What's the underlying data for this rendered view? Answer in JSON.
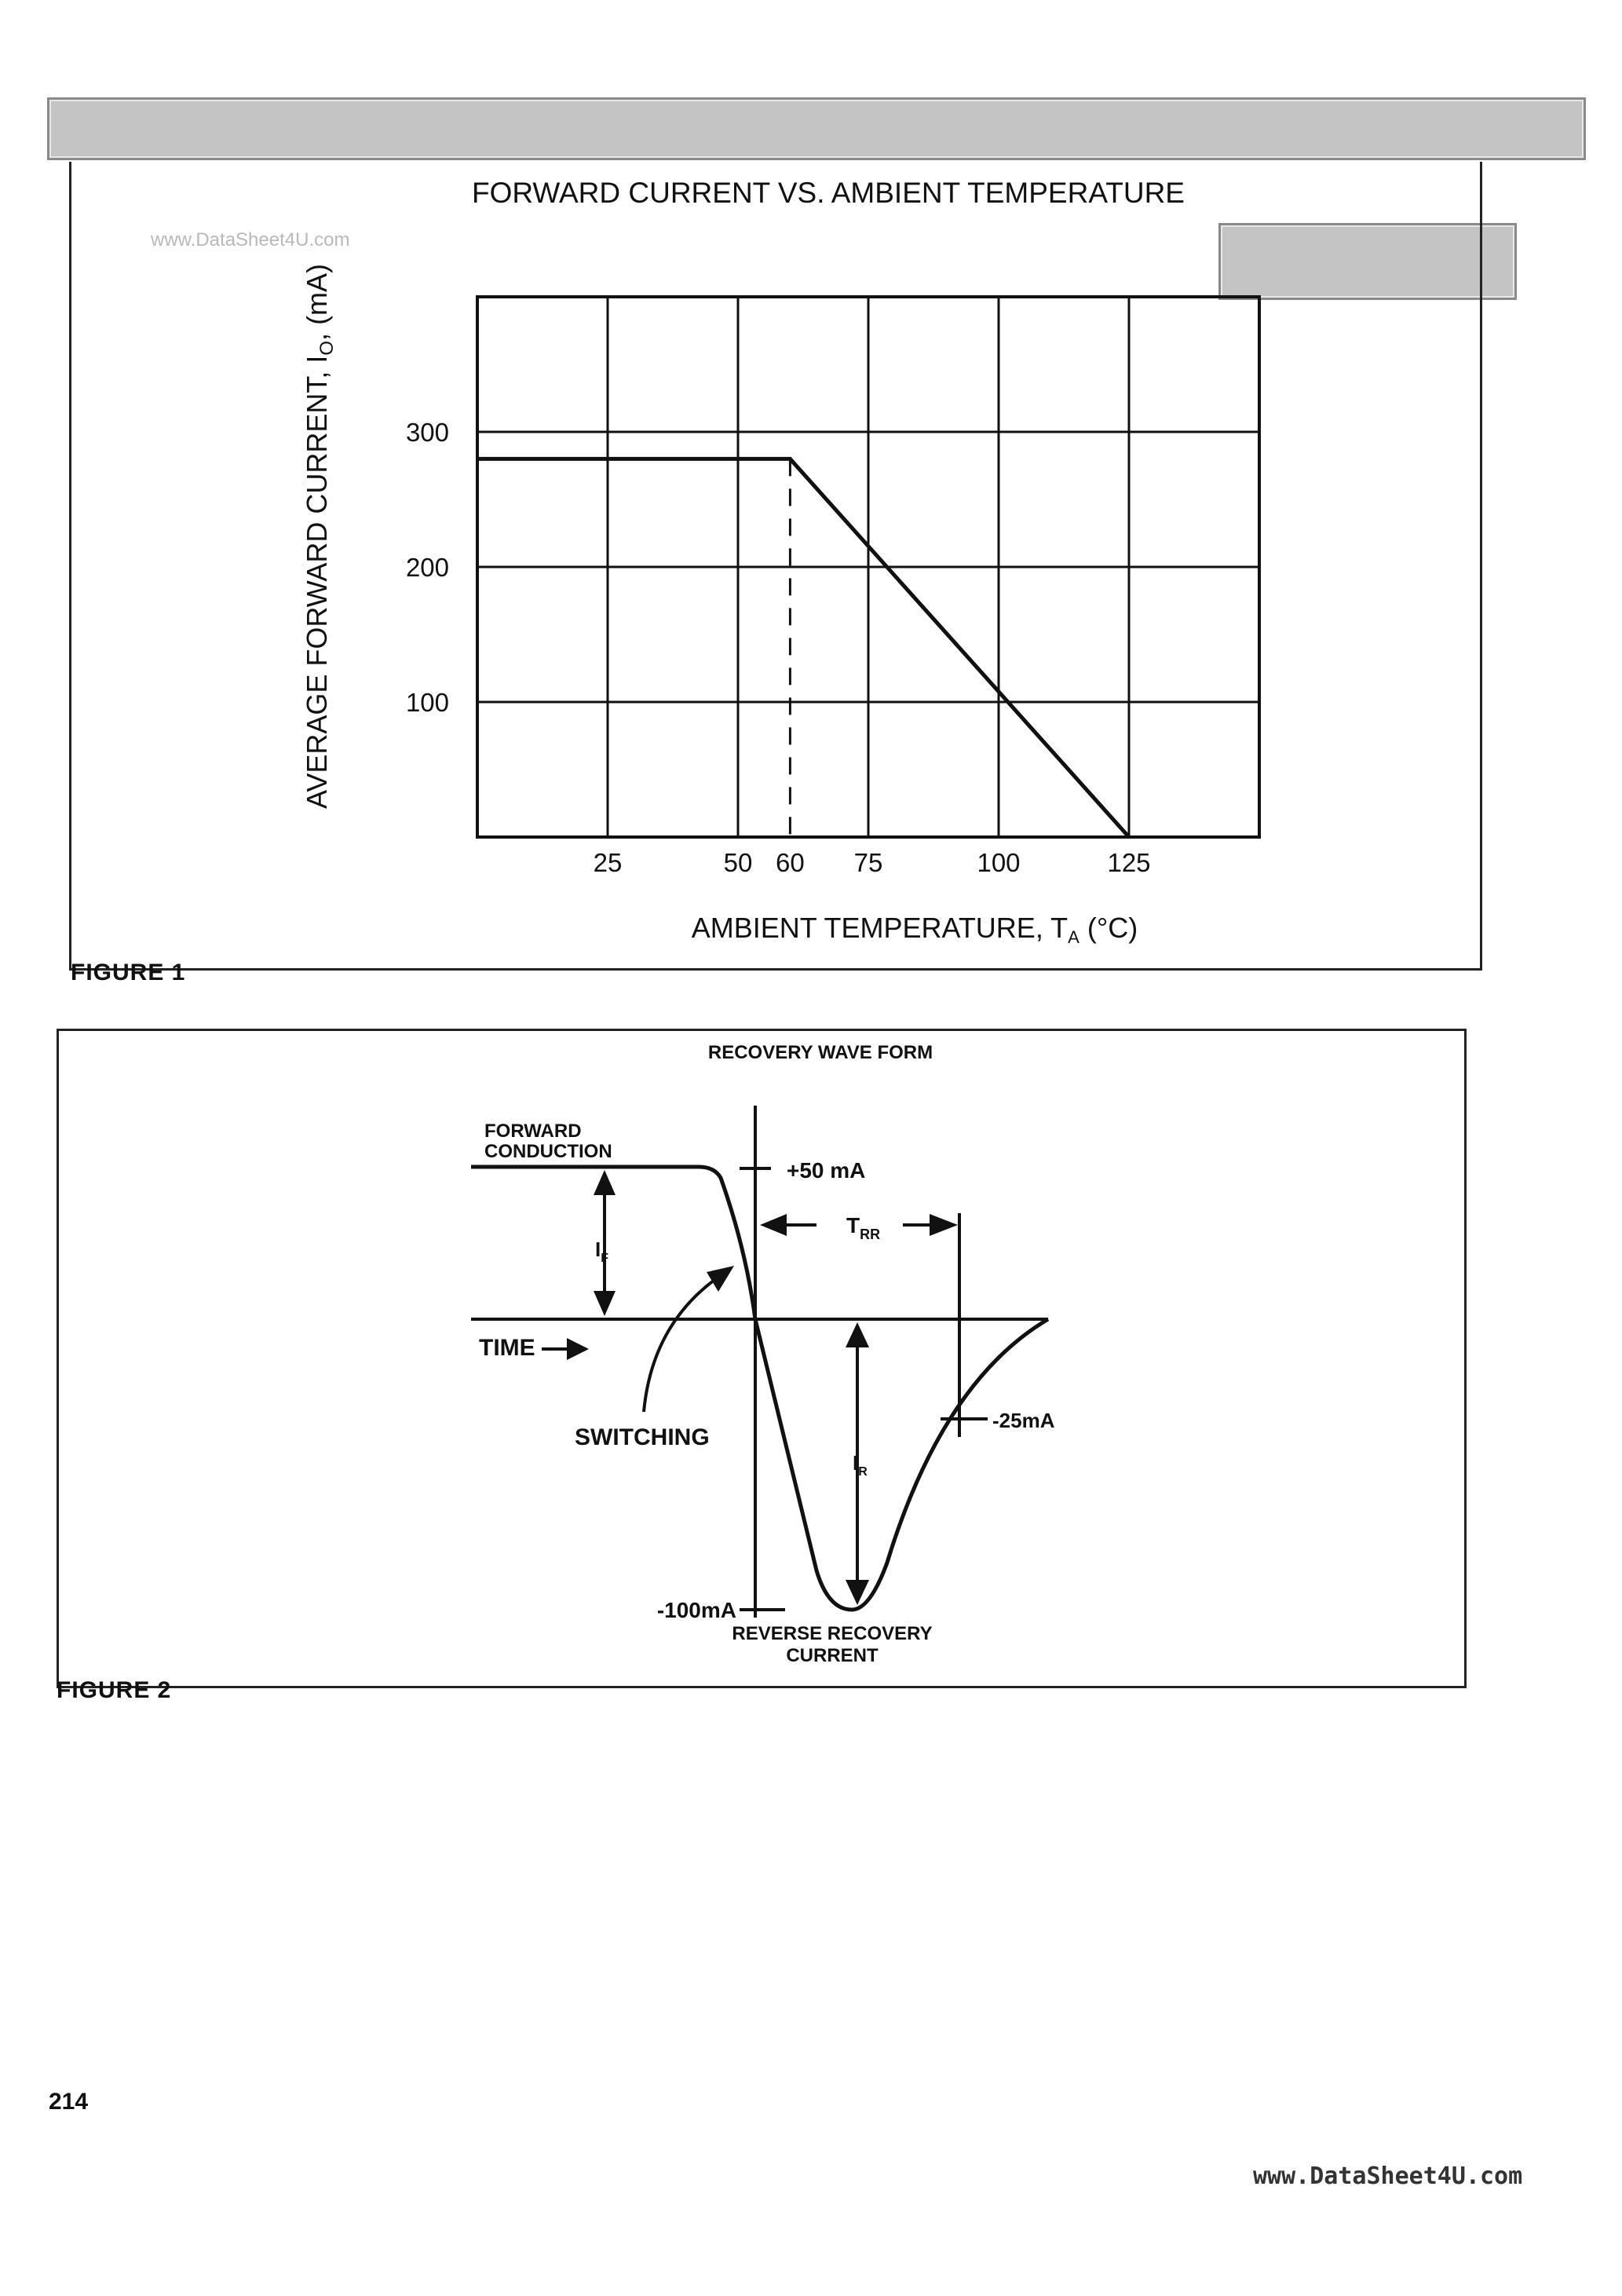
{
  "watermark": "www.DataSheet4U.com",
  "figure1": {
    "label": "FIGURE 1",
    "chart_data": {
      "type": "line",
      "title": "FORWARD CURRENT VS. AMBIENT TEMPERATURE",
      "xlabel_main": "AMBIENT TEMPERATURE, T",
      "xlabel_sub": "A",
      "xlabel_unit": " (°C)",
      "ylabel_main": "AVERAGE FORWARD CURRENT, I",
      "ylabel_sub": "O",
      "ylabel_unit": ", (mA)",
      "x_ticks": [
        25,
        50,
        60,
        75,
        100,
        125
      ],
      "y_ticks": [
        100,
        200,
        300
      ],
      "xlim": [
        0,
        150
      ],
      "ylim": [
        0,
        400
      ],
      "series": [
        {
          "x": [
            0,
            60,
            125
          ],
          "y": [
            280,
            280,
            0
          ]
        }
      ],
      "reference_line": {
        "x": 60,
        "style": "dashed"
      },
      "grid": true
    }
  },
  "figure2": {
    "label": "FIGURE 2",
    "title": "RECOVERY WAVE FORM",
    "labels": {
      "forward1": "FORWARD",
      "forward2": "CONDUCTION",
      "plus50": "+50 mA",
      "trr_main": "T",
      "trr_sub": "RR",
      "if_main": "I",
      "if_sub": "F",
      "time": "TIME",
      "switching": "SWITCHING",
      "minus25": "-25mA",
      "ir_main": "I",
      "ir_sub": "R",
      "minus100": "-100mA",
      "rev1": "REVERSE RECOVERY",
      "rev2": "CURRENT"
    }
  },
  "page_number": "214",
  "footer_url": "www.DataSheet4U.com"
}
